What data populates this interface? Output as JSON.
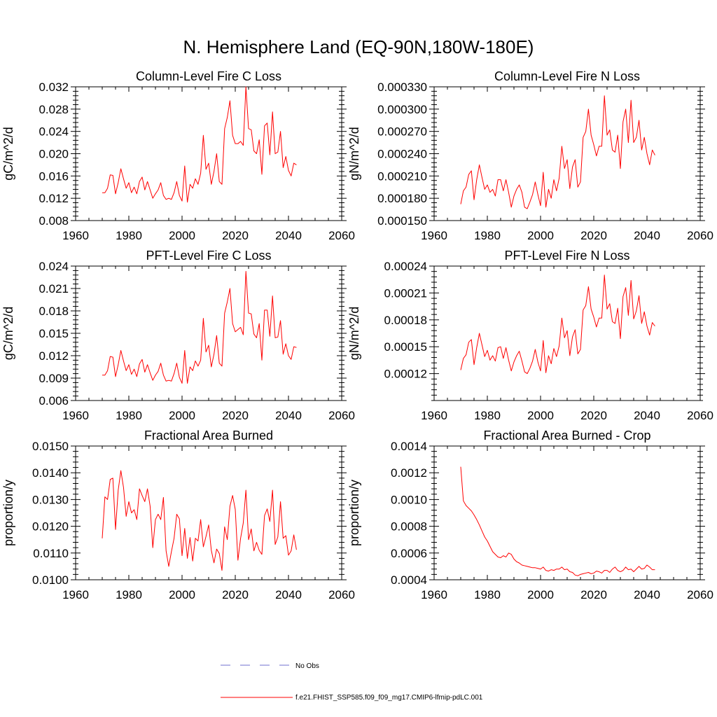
{
  "figure": {
    "title": "N. Hemisphere Land (EQ-90N,180W-180E)",
    "series_color": "#ff0000",
    "obs_color": "#6f6fcf"
  },
  "legend": {
    "obs_label": "No Obs",
    "model_label": "f.e21.FHIST_SSP585.f09_f09_mg17.CMIP6-lfmip-pdLC.001"
  },
  "chart_data": [
    {
      "type": "line",
      "title": "Column-Level Fire C Loss",
      "ylabel": "gC/m^2/d",
      "xlim": [
        1960,
        2060
      ],
      "xticks": [
        1960,
        1980,
        2000,
        2020,
        2040,
        2060
      ],
      "ylim": [
        0.008,
        0.032
      ],
      "yticks": [
        0.008,
        0.012,
        0.016,
        0.02,
        0.024,
        0.028,
        0.032
      ],
      "ytick_labels": [
        "0.008",
        "0.012",
        "0.016",
        "0.020",
        "0.024",
        "0.028",
        "0.032"
      ],
      "x_start": 1970,
      "values": [
        0.013,
        0.013,
        0.0138,
        0.0162,
        0.0161,
        0.0128,
        0.0148,
        0.0173,
        0.0155,
        0.0138,
        0.0148,
        0.013,
        0.014,
        0.0128,
        0.015,
        0.0158,
        0.0135,
        0.015,
        0.0135,
        0.012,
        0.0128,
        0.0135,
        0.0148,
        0.0125,
        0.0118,
        0.012,
        0.0118,
        0.013,
        0.015,
        0.0125,
        0.0115,
        0.0178,
        0.0113,
        0.0145,
        0.0138,
        0.0155,
        0.0145,
        0.0165,
        0.0233,
        0.0172,
        0.0183,
        0.0145,
        0.0168,
        0.02,
        0.015,
        0.0145,
        0.0245,
        0.0265,
        0.0295,
        0.0233,
        0.0218,
        0.0218,
        0.0222,
        0.0215,
        0.032,
        0.0245,
        0.0243,
        0.0205,
        0.02,
        0.0225,
        0.0163,
        0.025,
        0.0255,
        0.0198,
        0.0275,
        0.02,
        0.0203,
        0.024,
        0.0175,
        0.0195,
        0.017,
        0.016,
        0.0183,
        0.018
      ]
    },
    {
      "type": "line",
      "title": "Column-Level Fire N Loss",
      "ylabel": "gN/m^2/d",
      "xlim": [
        1960,
        2060
      ],
      "xticks": [
        1960,
        1980,
        2000,
        2020,
        2040,
        2060
      ],
      "ylim": [
        0.00015,
        0.00033
      ],
      "yticks": [
        0.00015,
        0.00018,
        0.00021,
        0.00024,
        0.00027,
        0.0003,
        0.00033
      ],
      "ytick_labels": [
        "0.000150",
        "0.000180",
        "0.000210",
        "0.000240",
        "0.000270",
        "0.000300",
        "0.000330"
      ],
      "x_start": 1970,
      "values": [
        0.000172,
        0.00019,
        0.000195,
        0.000212,
        0.000217,
        0.000178,
        0.000205,
        0.000225,
        0.000208,
        0.000192,
        0.000198,
        0.000188,
        0.000192,
        0.000183,
        0.000205,
        0.000205,
        0.00019,
        0.000205,
        0.000188,
        0.000168,
        0.000183,
        0.000192,
        0.000198,
        0.000188,
        0.000168,
        0.000166,
        0.000175,
        0.000185,
        0.000202,
        0.000185,
        0.00017,
        0.000215,
        0.000168,
        0.000192,
        0.00018,
        0.000205,
        0.00019,
        0.000207,
        0.00025,
        0.00022,
        0.000232,
        0.000193,
        0.000222,
        0.000232,
        0.000195,
        0.000202,
        0.000262,
        0.00027,
        0.0003,
        0.000265,
        0.000252,
        0.000237,
        0.00025,
        0.00025,
        0.000318,
        0.000265,
        0.000272,
        0.000245,
        0.000242,
        0.000265,
        0.00022,
        0.000283,
        0.0003,
        0.000255,
        0.000312,
        0.000255,
        0.000262,
        0.000285,
        0.000245,
        0.000262,
        0.00024,
        0.000225,
        0.000245,
        0.000238
      ]
    },
    {
      "type": "line",
      "title": "PFT-Level Fire C Loss",
      "ylabel": "gC/m^2/d",
      "xlim": [
        1960,
        2060
      ],
      "xticks": [
        1960,
        1980,
        2000,
        2020,
        2040,
        2060
      ],
      "ylim": [
        0.006,
        0.024
      ],
      "yticks": [
        0.006,
        0.009,
        0.012,
        0.015,
        0.018,
        0.021,
        0.024
      ],
      "ytick_labels": [
        "0.006",
        "0.009",
        "0.012",
        "0.015",
        "0.018",
        "0.021",
        "0.024"
      ],
      "x_start": 1970,
      "values": [
        0.0094,
        0.0094,
        0.01,
        0.0119,
        0.0118,
        0.0092,
        0.0108,
        0.0127,
        0.0113,
        0.01,
        0.0108,
        0.0095,
        0.0102,
        0.0092,
        0.0109,
        0.0115,
        0.0098,
        0.0108,
        0.0097,
        0.0087,
        0.0094,
        0.0099,
        0.011,
        0.0094,
        0.0086,
        0.0087,
        0.0086,
        0.0096,
        0.011,
        0.0091,
        0.0083,
        0.0127,
        0.0083,
        0.0105,
        0.01,
        0.0113,
        0.0106,
        0.0114,
        0.017,
        0.0125,
        0.0134,
        0.0105,
        0.0122,
        0.0147,
        0.011,
        0.0106,
        0.0177,
        0.0192,
        0.021,
        0.0163,
        0.0152,
        0.0155,
        0.0158,
        0.0148,
        0.0233,
        0.0177,
        0.0176,
        0.0149,
        0.0144,
        0.0163,
        0.0114,
        0.0181,
        0.0181,
        0.0146,
        0.02,
        0.0144,
        0.0145,
        0.0167,
        0.0122,
        0.0136,
        0.012,
        0.0115,
        0.0132,
        0.0131
      ]
    },
    {
      "type": "line",
      "title": "PFT-Level Fire N Loss",
      "ylabel": "gN/m^2/d",
      "xlim": [
        1960,
        2060
      ],
      "xticks": [
        1960,
        1980,
        2000,
        2020,
        2040,
        2060
      ],
      "ylim": [
        9e-05,
        0.00024
      ],
      "yticks": [
        0.00012,
        0.00015,
        0.00018,
        0.00021,
        0.00024
      ],
      "ytick_labels": [
        "0.00012",
        "0.00015",
        "0.00018",
        "0.00021",
        "0.00024"
      ],
      "x_start": 1970,
      "values": [
        0.000124,
        0.000137,
        0.000141,
        0.000155,
        0.000158,
        0.00013,
        0.000149,
        0.000165,
        0.000152,
        0.000139,
        0.000146,
        0.000135,
        0.00014,
        0.000134,
        0.000149,
        0.00015,
        0.000137,
        0.000149,
        0.000135,
        0.000123,
        0.000133,
        0.00014,
        0.000145,
        0.000134,
        0.000122,
        0.00012,
        0.000126,
        0.000134,
        0.000147,
        0.000133,
        0.000123,
        0.000157,
        0.000121,
        0.00014,
        0.000131,
        0.000148,
        0.000139,
        0.000151,
        0.000182,
        0.00016,
        0.000168,
        0.00014,
        0.000161,
        0.000169,
        0.000142,
        0.000147,
        0.000191,
        0.000196,
        0.000217,
        0.000192,
        0.000183,
        0.000172,
        0.000182,
        0.000182,
        0.00023,
        0.000192,
        0.000198,
        0.000178,
        0.000176,
        0.000193,
        0.000159,
        0.000206,
        0.000216,
        0.000185,
        0.000224,
        0.000181,
        0.00019,
        0.000207,
        0.000176,
        0.000189,
        0.000173,
        0.000163,
        0.000177,
        0.000173
      ]
    },
    {
      "type": "line",
      "title": "Fractional Area Burned",
      "ylabel": "proportion/y",
      "xlim": [
        1960,
        2060
      ],
      "xticks": [
        1960,
        1980,
        2000,
        2020,
        2040,
        2060
      ],
      "ylim": [
        0.01,
        0.015
      ],
      "yticks": [
        0.01,
        0.011,
        0.012,
        0.013,
        0.014,
        0.015
      ],
      "ytick_labels": [
        "0.0100",
        "0.0110",
        "0.0120",
        "0.0130",
        "0.0140",
        "0.0150"
      ],
      "x_start": 1970,
      "values": [
        0.01155,
        0.0131,
        0.013,
        0.01375,
        0.0138,
        0.01188,
        0.01335,
        0.01408,
        0.01345,
        0.01237,
        0.01292,
        0.0125,
        0.01262,
        0.01225,
        0.0134,
        0.01315,
        0.01292,
        0.0134,
        0.01275,
        0.0112,
        0.01225,
        0.01245,
        0.01225,
        0.01308,
        0.01108,
        0.0105,
        0.01105,
        0.01155,
        0.01245,
        0.01228,
        0.0109,
        0.01192,
        0.0108,
        0.01158,
        0.0107,
        0.01155,
        0.01145,
        0.01225,
        0.01123,
        0.01162,
        0.01205,
        0.0111,
        0.01063,
        0.01115,
        0.01098,
        0.01035,
        0.01198,
        0.0115,
        0.01275,
        0.01315,
        0.01263,
        0.01073,
        0.01155,
        0.01212,
        0.01335,
        0.0115,
        0.0119,
        0.01108,
        0.0114,
        0.0111,
        0.01095,
        0.0124,
        0.01265,
        0.01218,
        0.01335,
        0.01132,
        0.0116,
        0.01292,
        0.01155,
        0.01165,
        0.01092,
        0.01108,
        0.01168,
        0.01112
      ]
    },
    {
      "type": "line",
      "title": "Fractional Area Burned - Crop",
      "ylabel": "proportion/y",
      "xlim": [
        1960,
        2060
      ],
      "xticks": [
        1960,
        1980,
        2000,
        2020,
        2040,
        2060
      ],
      "ylim": [
        0.0004,
        0.0014
      ],
      "yticks": [
        0.0004,
        0.0006,
        0.0008,
        0.001,
        0.0012,
        0.0014
      ],
      "ytick_labels": [
        "0.0004",
        "0.0006",
        "0.0008",
        "0.0010",
        "0.0012",
        "0.0014"
      ],
      "x_start": 1970,
      "values": [
        0.001245,
        0.00099,
        0.000955,
        0.000935,
        0.000915,
        0.000885,
        0.00085,
        0.00081,
        0.000765,
        0.00072,
        0.00069,
        0.00065,
        0.00061,
        0.00059,
        0.00057,
        0.000565,
        0.00058,
        0.00057,
        0.0006,
        0.00059,
        0.000555,
        0.000535,
        0.000525,
        0.00051,
        0.000505,
        0.0005,
        0.000495,
        0.00049,
        0.00049,
        0.000485,
        0.00048,
        0.000495,
        0.00047,
        0.000465,
        0.000475,
        0.00047,
        0.00048,
        0.00048,
        0.000495,
        0.000475,
        0.00048,
        0.00046,
        0.000455,
        0.000435,
        0.00043,
        0.00044,
        0.000445,
        0.00045,
        0.000455,
        0.000445,
        0.00045,
        0.000465,
        0.00046,
        0.00045,
        0.00047,
        0.00047,
        0.000455,
        0.00048,
        0.000495,
        0.00047,
        0.00046,
        0.00047,
        0.000495,
        0.000475,
        0.00048,
        0.00046,
        0.00048,
        0.0005,
        0.00048,
        0.000485,
        0.00051,
        0.000495,
        0.000475,
        0.000475
      ]
    }
  ]
}
